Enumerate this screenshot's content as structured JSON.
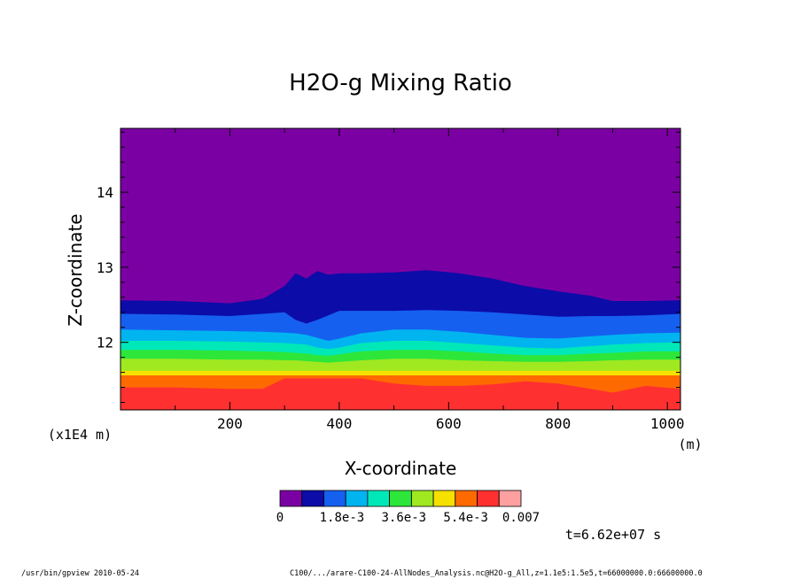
{
  "chart_data": {
    "type": "heatmap",
    "title": "H2O-g Mixing Ratio",
    "xlabel": "X-coordinate",
    "ylabel": "Z-coordinate",
    "x_unit": "(m)",
    "y_unit": "(x1E4 m)",
    "xlim": [
      0,
      1024
    ],
    "ylim": [
      11.1,
      14.85
    ],
    "x_ticks": [
      200,
      400,
      600,
      800,
      1000
    ],
    "y_ticks": [
      12,
      13,
      14
    ],
    "x_tick_labels": [
      "200",
      "400",
      "600",
      "800",
      "1000"
    ],
    "y_tick_labels": [
      "12",
      "13",
      "14"
    ],
    "colorbar": {
      "levels": 11,
      "colors": [
        "#7b00a3",
        "#0c0ca8",
        "#1660f0",
        "#00b4f0",
        "#00e8b8",
        "#2ee63a",
        "#a0e820",
        "#f5e000",
        "#ff6a00",
        "#ff3030",
        "#ffa0a0"
      ],
      "labels": [
        "0",
        "1.8e-3",
        "3.6e-3",
        "5.4e-3",
        "0.007"
      ],
      "label_positions": [
        0,
        0.257,
        0.514,
        0.771,
        1.0
      ]
    },
    "band_tops_z": {
      "x": [
        0,
        100,
        200,
        260,
        300,
        320,
        340,
        360,
        380,
        400,
        440,
        500,
        560,
        620,
        680,
        740,
        800,
        860,
        900,
        960,
        1024
      ],
      "dark_blue": [
        12.56,
        12.55,
        12.52,
        12.58,
        12.75,
        12.92,
        12.85,
        12.95,
        12.9,
        12.92,
        12.92,
        12.93,
        12.96,
        12.92,
        12.85,
        12.75,
        12.68,
        12.62,
        12.55,
        12.55,
        12.56
      ],
      "blue": [
        12.38,
        12.37,
        12.35,
        12.38,
        12.4,
        12.3,
        12.25,
        12.3,
        12.36,
        12.42,
        12.42,
        12.42,
        12.43,
        12.42,
        12.4,
        12.37,
        12.34,
        12.35,
        12.35,
        12.36,
        12.38
      ],
      "cyan": [
        12.17,
        12.16,
        12.15,
        12.14,
        12.13,
        12.12,
        12.1,
        12.06,
        12.02,
        12.05,
        12.12,
        12.17,
        12.17,
        12.14,
        12.1,
        12.06,
        12.05,
        12.08,
        12.1,
        12.12,
        12.13
      ],
      "aqua": [
        12.02,
        12.02,
        12.01,
        12.0,
        11.99,
        11.98,
        11.97,
        11.93,
        11.91,
        11.93,
        11.99,
        12.02,
        12.02,
        11.99,
        11.96,
        11.93,
        11.92,
        11.95,
        11.97,
        11.99,
        12.0
      ],
      "green": [
        11.9,
        11.9,
        11.89,
        11.88,
        11.87,
        11.86,
        11.85,
        11.83,
        11.82,
        11.84,
        11.88,
        11.9,
        11.9,
        11.88,
        11.85,
        11.83,
        11.83,
        11.85,
        11.86,
        11.88,
        11.88
      ],
      "lime": [
        11.78,
        11.78,
        11.77,
        11.77,
        11.76,
        11.76,
        11.75,
        11.74,
        11.73,
        11.74,
        11.76,
        11.78,
        11.78,
        11.76,
        11.75,
        11.74,
        11.74,
        11.75,
        11.76,
        11.77,
        11.77
      ],
      "yellow": [
        11.62,
        11.62,
        11.62,
        11.62,
        11.62,
        11.62,
        11.62,
        11.62,
        11.62,
        11.62,
        11.62,
        11.62,
        11.62,
        11.62,
        11.62,
        11.62,
        11.62,
        11.62,
        11.62,
        11.62,
        11.62
      ],
      "orange": [
        11.56,
        11.56,
        11.56,
        11.56,
        11.56,
        11.56,
        11.56,
        11.56,
        11.56,
        11.56,
        11.56,
        11.56,
        11.56,
        11.56,
        11.56,
        11.56,
        11.56,
        11.56,
        11.56,
        11.56,
        11.56
      ],
      "red": [
        11.4,
        11.4,
        11.38,
        11.38,
        11.52,
        11.52,
        11.52,
        11.52,
        11.52,
        11.52,
        11.52,
        11.45,
        11.42,
        11.42,
        11.44,
        11.48,
        11.45,
        11.38,
        11.33,
        11.42,
        11.38
      ]
    }
  },
  "time_label": "t=6.62e+07 s",
  "footer": {
    "left": "/usr/bin/gpview  2010-05-24",
    "right": "C100/.../arare-C100-24-AllNodes_Analysis.nc@H2O-g_All,z=1.1e5:1.5e5,t=66000000.0:66600000.0"
  }
}
